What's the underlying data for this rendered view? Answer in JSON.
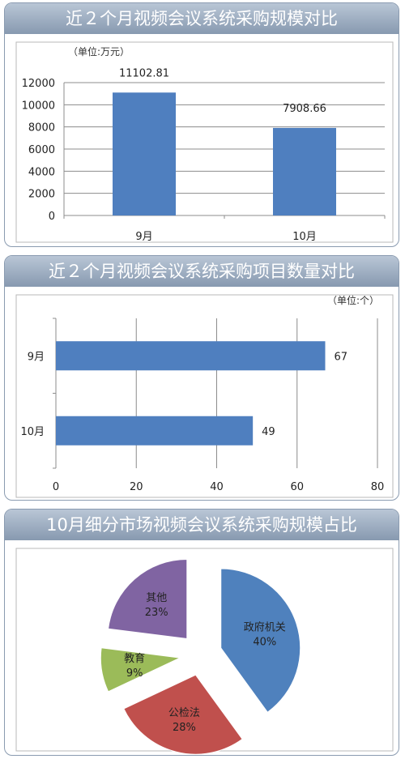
{
  "chart_data": [
    {
      "type": "bar",
      "title": "近２个月视频会议系统采购规模对比",
      "unit_label": "（单位:万元）",
      "categories": [
        "9月",
        "10月"
      ],
      "values": [
        11102.81,
        7908.66
      ],
      "value_labels": [
        "11102.81",
        "7908.66"
      ],
      "ylim": [
        0,
        12000
      ],
      "yticks": [
        "0",
        "2000",
        "4000",
        "6000",
        "8000",
        "10000",
        "12000"
      ],
      "grid": true,
      "color": "#4f7fbf"
    },
    {
      "type": "bar",
      "orientation": "horizontal",
      "title": "近２个月视频会议系统采购项目数量对比",
      "unit_label": "（单位:个）",
      "categories": [
        "9月",
        "10月"
      ],
      "values": [
        67,
        49
      ],
      "value_labels": [
        "67",
        "49"
      ],
      "xlim": [
        0,
        80
      ],
      "xticks": [
        "0",
        "20",
        "40",
        "60",
        "80"
      ],
      "grid": true,
      "color": "#4f7fbf"
    },
    {
      "type": "pie",
      "title": "10月细分市场视频会议系统采购规模占比",
      "exploded": true,
      "slices": [
        {
          "name": "政府机关",
          "value": 40,
          "label": "40%",
          "color": "#4f81bd"
        },
        {
          "name": "公检法",
          "value": 28,
          "label": "28%",
          "color": "#c0504d"
        },
        {
          "name": "教育",
          "value": 9,
          "label": "9%",
          "color": "#9bbb59"
        },
        {
          "name": "其他",
          "value": 23,
          "label": "23%",
          "color": "#8064a2"
        }
      ]
    }
  ]
}
